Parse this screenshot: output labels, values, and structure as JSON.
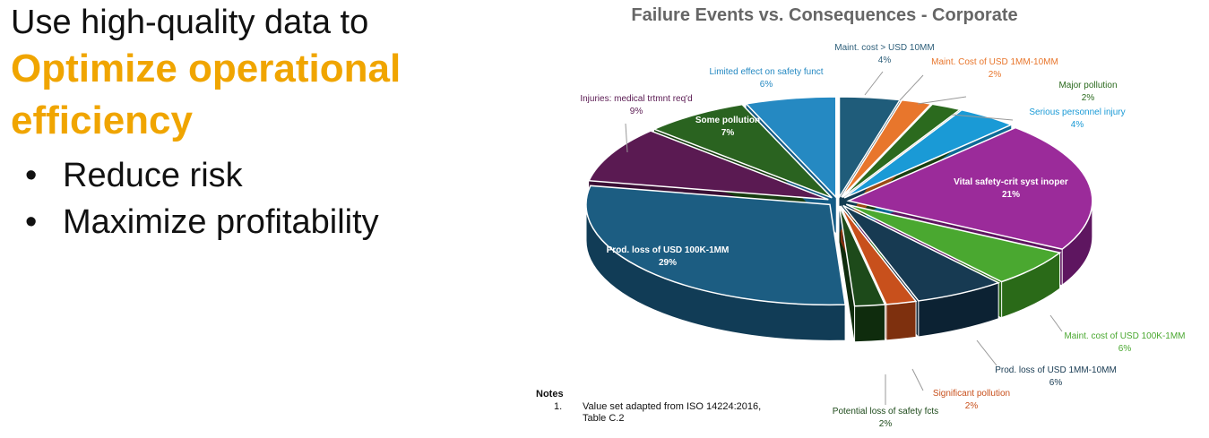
{
  "slide": {
    "heading_line1": "Use high-quality data to",
    "heading_accent_line1": "Optimize operational",
    "heading_accent_line2": "efficiency",
    "bullets": [
      "Reduce risk",
      "Maximize profitability"
    ]
  },
  "notes": {
    "title": "Notes",
    "items": [
      {
        "num": "1.",
        "text": "Value set adapted from ISO 14224:2016, Table C.2"
      }
    ]
  },
  "chart_data": {
    "type": "pie",
    "title": "Failure Events vs. Consequences - Corporate",
    "slices": [
      {
        "label": "Maint. cost > USD 10MM",
        "value": 4,
        "display": "4%",
        "color": "#1f5c7a",
        "side": "#123c52",
        "label_color": "#2e5f7a"
      },
      {
        "label": "Maint. Cost of USD 1MM-10MM",
        "value": 2,
        "display": "2%",
        "color": "#e8762c",
        "side": "#9a4a14",
        "label_color": "#e8762c"
      },
      {
        "label": "Major pollution",
        "value": 2,
        "display": "2%",
        "color": "#2b6a1e",
        "side": "#183f10",
        "label_color": "#2b6a1e"
      },
      {
        "label": "Serious personnel injury",
        "value": 4,
        "display": "4%",
        "color": "#1a9ad6",
        "side": "#0e6a96",
        "label_color": "#1a9ad6"
      },
      {
        "label": "Vital safety-crit syst inoper",
        "value": 21,
        "display": "21%",
        "color": "#9b2b9a",
        "side": "#5e1660",
        "label_color": "#ffffff"
      },
      {
        "label": "Maint. cost of USD 100K-1MM",
        "value": 6,
        "display": "6%",
        "color": "#4aa830",
        "side": "#2a6a18",
        "label_color": "#4aa830"
      },
      {
        "label": "Prod. loss of USD 1MM-10MM",
        "value": 6,
        "display": "6%",
        "color": "#173a52",
        "side": "#0c2233",
        "label_color": "#173a52"
      },
      {
        "label": "Significant pollution",
        "value": 2,
        "display": "2%",
        "color": "#c8501c",
        "side": "#7e300e",
        "label_color": "#c8501c"
      },
      {
        "label": "Potential loss of safety fcts",
        "value": 2,
        "display": "2%",
        "color": "#1d4a1a",
        "side": "#0f2c0d",
        "label_color": "#1d4a1a"
      },
      {
        "label": "Prod. loss of USD 100K-1MM",
        "value": 29,
        "display": "29%",
        "color": "#1c5d82",
        "side": "#113c56",
        "label_color": "#ffffff"
      },
      {
        "label": "Injuries: medical trtmnt req'd",
        "value": 9,
        "display": "9%",
        "color": "#5a1a52",
        "side": "#3a0f35",
        "label_color": "#5a1a52"
      },
      {
        "label": "Some pollution",
        "value": 7,
        "display": "7%",
        "color": "#2a6320",
        "side": "#173d11",
        "label_color": "#ffffff"
      },
      {
        "label": "Limited effect on safety funct",
        "value": 6,
        "display": "6%",
        "color": "#2589c2",
        "side": "#155c86",
        "label_color": "#2589c2"
      }
    ]
  }
}
